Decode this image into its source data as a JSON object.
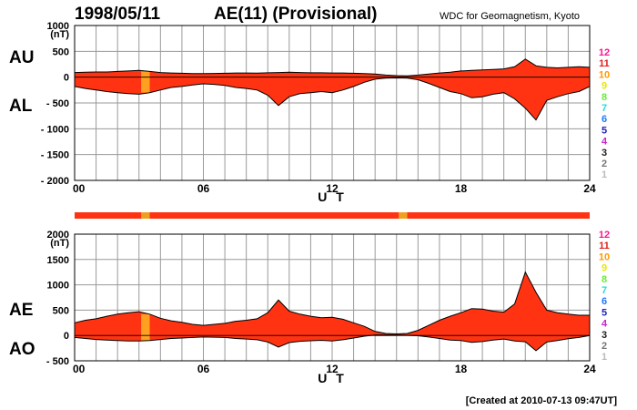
{
  "header": {
    "date": "1998/05/11",
    "title": "AE(11) (Provisional)",
    "source": "WDC for Geomagnetism, Kyoto"
  },
  "footer": {
    "created": "[Created at 2010-07-13 09:47UT]"
  },
  "legend": {
    "items": [
      {
        "label": "12",
        "color": "#ff1493"
      },
      {
        "label": "11",
        "color": "#e02020"
      },
      {
        "label": "10",
        "color": "#ff9900"
      },
      {
        "label": "9",
        "color": "#e8e800"
      },
      {
        "label": "8",
        "color": "#66ee33"
      },
      {
        "label": "7",
        "color": "#22dddd"
      },
      {
        "label": "6",
        "color": "#1e7bff"
      },
      {
        "label": "5",
        "color": "#2222bb"
      },
      {
        "label": "4",
        "color": "#cc22cc"
      },
      {
        "label": "3",
        "color": "#222222"
      },
      {
        "label": "2",
        "color": "#777777"
      },
      {
        "label": "1",
        "color": "#bbbbbb"
      }
    ]
  },
  "colors": {
    "fill_main": "#ff3311",
    "fill_highlight": "#ffa020",
    "status_bar": "#ff3311",
    "status_bar_highlight": "#f0a020",
    "grid": "#9a9a9a"
  },
  "chart_data": [
    {
      "type": "area",
      "name": "AU/AL",
      "upper_label": "AU",
      "lower_label": "AL",
      "unit": "(nT)",
      "xlabel": "U T",
      "ylabel": "",
      "xlim": [
        0,
        24
      ],
      "ylim": [
        -2000,
        1000
      ],
      "x_ticks": [
        "00",
        "06",
        "12",
        "18",
        "24"
      ],
      "y_ticks": [
        "1000",
        "500",
        "0",
        "- 500",
        "- 1000",
        "- 1500",
        "- 2000"
      ],
      "highlight_hours": [
        [
          3.1,
          3.5
        ]
      ],
      "series": [
        {
          "name": "AU",
          "x": [
            0,
            0.5,
            1,
            1.5,
            2,
            2.5,
            3,
            3.5,
            4,
            4.5,
            5,
            5.5,
            6,
            6.5,
            7,
            7.5,
            8,
            8.5,
            9,
            9.5,
            10,
            10.5,
            11,
            11.5,
            12,
            12.5,
            13,
            13.5,
            14,
            14.5,
            15,
            15.5,
            16,
            16.5,
            17,
            17.5,
            18,
            18.5,
            19,
            19.5,
            20,
            20.5,
            21,
            21.5,
            22,
            22.5,
            23,
            23.5,
            24
          ],
          "values": [
            90,
            95,
            100,
            100,
            110,
            120,
            130,
            110,
            90,
            80,
            75,
            70,
            70,
            72,
            75,
            80,
            80,
            78,
            85,
            90,
            95,
            90,
            85,
            85,
            80,
            80,
            75,
            70,
            60,
            40,
            30,
            25,
            40,
            60,
            80,
            95,
            120,
            130,
            140,
            150,
            160,
            200,
            350,
            220,
            190,
            180,
            190,
            200,
            190
          ]
        },
        {
          "name": "AL",
          "x": [
            0,
            0.5,
            1,
            1.5,
            2,
            2.5,
            3,
            3.5,
            4,
            4.5,
            5,
            5.5,
            6,
            6.5,
            7,
            7.5,
            8,
            8.5,
            9,
            9.5,
            10,
            10.5,
            11,
            11.5,
            12,
            12.5,
            13,
            13.5,
            14,
            14.5,
            15,
            15.5,
            16,
            16.5,
            17,
            17.5,
            18,
            18.5,
            19,
            19.5,
            20,
            20.5,
            21,
            21.5,
            22,
            22.5,
            23,
            23.5,
            24
          ],
          "values": [
            -180,
            -220,
            -250,
            -280,
            -300,
            -320,
            -330,
            -300,
            -250,
            -200,
            -180,
            -150,
            -130,
            -140,
            -160,
            -200,
            -220,
            -250,
            -350,
            -550,
            -380,
            -320,
            -300,
            -280,
            -300,
            -250,
            -180,
            -100,
            -40,
            -20,
            -15,
            -20,
            -50,
            -120,
            -200,
            -280,
            -320,
            -400,
            -380,
            -330,
            -300,
            -420,
            -600,
            -830,
            -450,
            -380,
            -320,
            -280,
            -180
          ]
        }
      ]
    },
    {
      "type": "area",
      "name": "AE/AO",
      "upper_label": "AE",
      "lower_label": "AO",
      "unit": "(nT)",
      "xlabel": "U T",
      "ylabel": "",
      "xlim": [
        0,
        24
      ],
      "ylim": [
        -500,
        2000
      ],
      "x_ticks": [
        "00",
        "06",
        "12",
        "18",
        "24"
      ],
      "y_ticks": [
        "2000",
        "1500",
        "1000",
        "500",
        "0",
        "- 500"
      ],
      "highlight_hours": [
        [
          3.1,
          3.5
        ]
      ],
      "series": [
        {
          "name": "AE",
          "x": [
            0,
            0.5,
            1,
            1.5,
            2,
            2.5,
            3,
            3.5,
            4,
            4.5,
            5,
            5.5,
            6,
            6.5,
            7,
            7.5,
            8,
            8.5,
            9,
            9.5,
            10,
            10.5,
            11,
            11.5,
            12,
            12.5,
            13,
            13.5,
            14,
            14.5,
            15,
            15.5,
            16,
            16.5,
            17,
            17.5,
            18,
            18.5,
            19,
            19.5,
            20,
            20.5,
            21,
            21.5,
            22,
            22.5,
            23,
            23.5,
            24
          ],
          "values": [
            250,
            300,
            330,
            380,
            420,
            450,
            470,
            420,
            340,
            290,
            260,
            220,
            200,
            220,
            240,
            280,
            300,
            330,
            450,
            700,
            480,
            420,
            380,
            350,
            360,
            320,
            250,
            180,
            80,
            40,
            30,
            40,
            100,
            200,
            300,
            380,
            450,
            530,
            520,
            480,
            460,
            620,
            1250,
            850,
            500,
            450,
            420,
            400,
            400
          ]
        },
        {
          "name": "AO",
          "x": [
            0,
            0.5,
            1,
            1.5,
            2,
            2.5,
            3,
            3.5,
            4,
            4.5,
            5,
            5.5,
            6,
            6.5,
            7,
            7.5,
            8,
            8.5,
            9,
            9.5,
            10,
            10.5,
            11,
            11.5,
            12,
            12.5,
            13,
            13.5,
            14,
            14.5,
            15,
            15.5,
            16,
            16.5,
            17,
            17.5,
            18,
            18.5,
            19,
            19.5,
            20,
            20.5,
            21,
            21.5,
            22,
            22.5,
            23,
            23.5,
            24
          ],
          "values": [
            -40,
            -60,
            -80,
            -90,
            -100,
            -110,
            -110,
            -100,
            -80,
            -60,
            -50,
            -40,
            -30,
            -35,
            -40,
            -60,
            -70,
            -85,
            -130,
            -230,
            -140,
            -115,
            -105,
            -95,
            -110,
            -85,
            -50,
            -15,
            10,
            10,
            8,
            3,
            -5,
            -30,
            -60,
            -90,
            -100,
            -135,
            -120,
            -90,
            -70,
            -110,
            -125,
            -300,
            -130,
            -100,
            -65,
            -40,
            0
          ]
        }
      ]
    }
  ]
}
